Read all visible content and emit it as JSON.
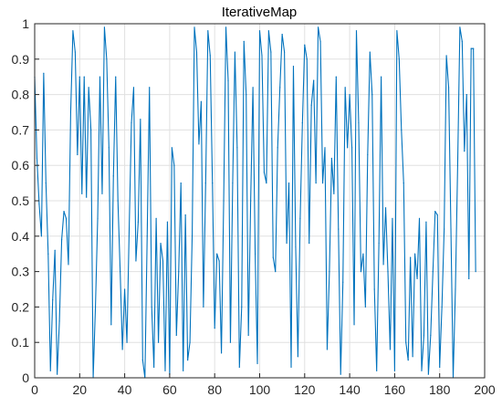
{
  "chart_data": {
    "type": "line",
    "title": "IterativeMap",
    "xlabel": "",
    "ylabel": "",
    "xlim": [
      0,
      200
    ],
    "ylim": [
      0,
      1
    ],
    "grid": true,
    "x_ticks": [
      "0",
      "20",
      "40",
      "60",
      "80",
      "100",
      "120",
      "140",
      "160",
      "180",
      "200"
    ],
    "y_ticks": [
      "0",
      "0.1",
      "0.2",
      "0.3",
      "0.4",
      "0.5",
      "0.6",
      "0.7",
      "0.8",
      "0.9",
      "1"
    ],
    "colors": {
      "line": "#0072BD",
      "grid": "#e0e0e0",
      "axis": "#262626"
    },
    "series": [
      {
        "x_start": 0,
        "x_step": 1,
        "values": [
          0.85,
          0.62,
          0.49,
          0.4,
          0.86,
          0.55,
          0.35,
          0.02,
          0.22,
          0.36,
          0.01,
          0.16,
          0.39,
          0.47,
          0.45,
          0.32,
          0.75,
          0.98,
          0.92,
          0.63,
          0.85,
          0.52,
          0.85,
          0.51,
          0.82,
          0.7,
          0.0,
          0.2,
          0.45,
          0.85,
          0.52,
          0.99,
          0.9,
          0.65,
          0.15,
          0.57,
          0.85,
          0.5,
          0.3,
          0.08,
          0.25,
          0.1,
          0.42,
          0.72,
          0.82,
          0.33,
          0.44,
          0.73,
          0.05,
          0.0,
          0.4,
          0.82,
          0.2,
          0.03,
          0.45,
          0.1,
          0.38,
          0.33,
          0.02,
          0.44,
          0.01,
          0.65,
          0.6,
          0.12,
          0.3,
          0.55,
          0.02,
          0.46,
          0.05,
          0.1,
          0.4,
          0.99,
          0.92,
          0.66,
          0.78,
          0.2,
          0.55,
          0.98,
          0.91,
          0.55,
          0.14,
          0.35,
          0.33,
          0.07,
          0.5,
          0.99,
          0.84,
          0.1,
          0.55,
          0.92,
          0.65,
          0.03,
          0.2,
          0.95,
          0.8,
          0.12,
          0.5,
          0.82,
          0.35,
          0.04,
          0.98,
          0.91,
          0.58,
          0.55,
          0.98,
          0.92,
          0.34,
          0.3,
          0.65,
          0.82,
          0.97,
          0.92,
          0.38,
          0.55,
          0.03,
          0.88,
          0.37,
          0.06,
          0.45,
          0.72,
          0.94,
          0.9,
          0.38,
          0.77,
          0.84,
          0.55,
          0.99,
          0.95,
          0.55,
          0.65,
          0.08,
          0.3,
          0.62,
          0.52,
          0.85,
          0.42,
          0.01,
          0.27,
          0.82,
          0.65,
          0.8,
          0.65,
          0.15,
          0.98,
          0.72,
          0.3,
          0.35,
          0.2,
          0.63,
          0.92,
          0.8,
          0.25,
          0.02,
          0.38,
          0.85,
          0.32,
          0.48,
          0.3,
          0.08,
          0.45,
          0.02,
          0.98,
          0.9,
          0.7,
          0.55,
          0.1,
          0.05,
          0.34,
          0.06,
          0.35,
          0.28,
          0.45,
          0.02,
          0.12,
          0.44,
          0.01,
          0.12,
          0.3,
          0.47,
          0.46,
          0.03,
          0.2,
          0.42,
          0.91,
          0.82,
          0.42,
          0.0,
          0.25,
          0.6,
          0.99,
          0.95,
          0.64,
          0.8,
          0.28,
          0.93,
          0.93,
          0.3
        ]
      }
    ]
  }
}
